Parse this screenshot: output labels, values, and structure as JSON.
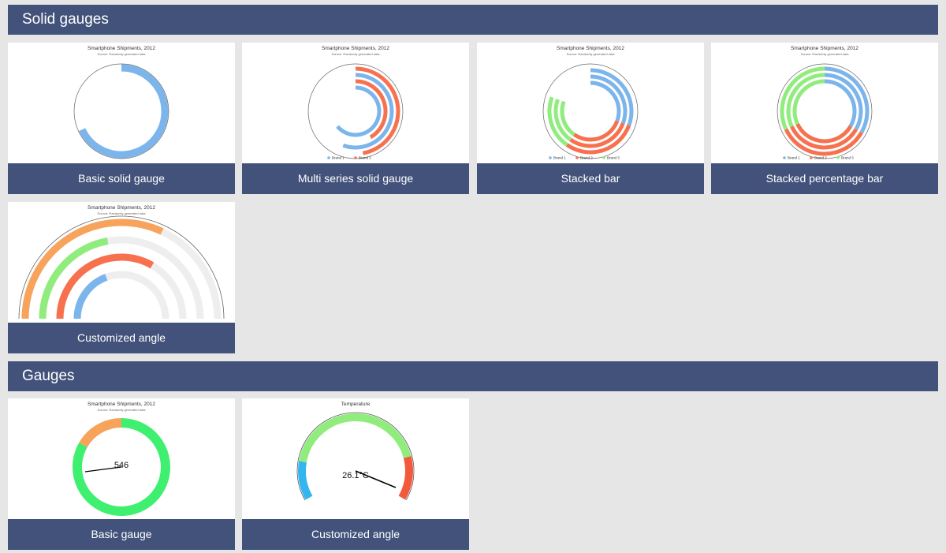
{
  "sections": [
    {
      "title": "Solid gauges",
      "cards": [
        {
          "caption": "Basic solid gauge",
          "thumb": {
            "title": "Smartphone Shipments, 2012",
            "subtitle": "Source: Randomly generated data"
          }
        },
        {
          "caption": "Multi series solid gauge",
          "thumb": {
            "title": "Smartphone Shipments, 2012",
            "subtitle": "Source: Randomly generated data",
            "legend": [
              "Brand 1",
              "Brand 2"
            ]
          }
        },
        {
          "caption": "Stacked bar",
          "thumb": {
            "title": "Smartphone Shipments, 2012",
            "subtitle": "Source: Randomly generated data",
            "legend": [
              "Brand 1",
              "Brand 2",
              "Brand 3"
            ]
          }
        },
        {
          "caption": "Stacked percentage bar",
          "thumb": {
            "title": "Smartphone Shipments, 2012",
            "subtitle": "Source: Randomly generated data",
            "legend": [
              "Brand 1",
              "Brand 2",
              "Brand 3"
            ]
          }
        },
        {
          "caption": "Customized angle",
          "thumb": {
            "title": "Smartphone Shipments, 2012",
            "subtitle": "Source: Randomly generated data"
          }
        }
      ]
    },
    {
      "title": "Gauges",
      "cards": [
        {
          "caption": "Basic gauge",
          "thumb": {
            "title": "Smartphone Shipments, 2012",
            "subtitle": "Source: Randomly generated data",
            "value_label": "546"
          }
        },
        {
          "caption": "Customized angle",
          "thumb": {
            "title": "Temperature",
            "value_label": "26.1°C"
          }
        }
      ]
    }
  ]
}
